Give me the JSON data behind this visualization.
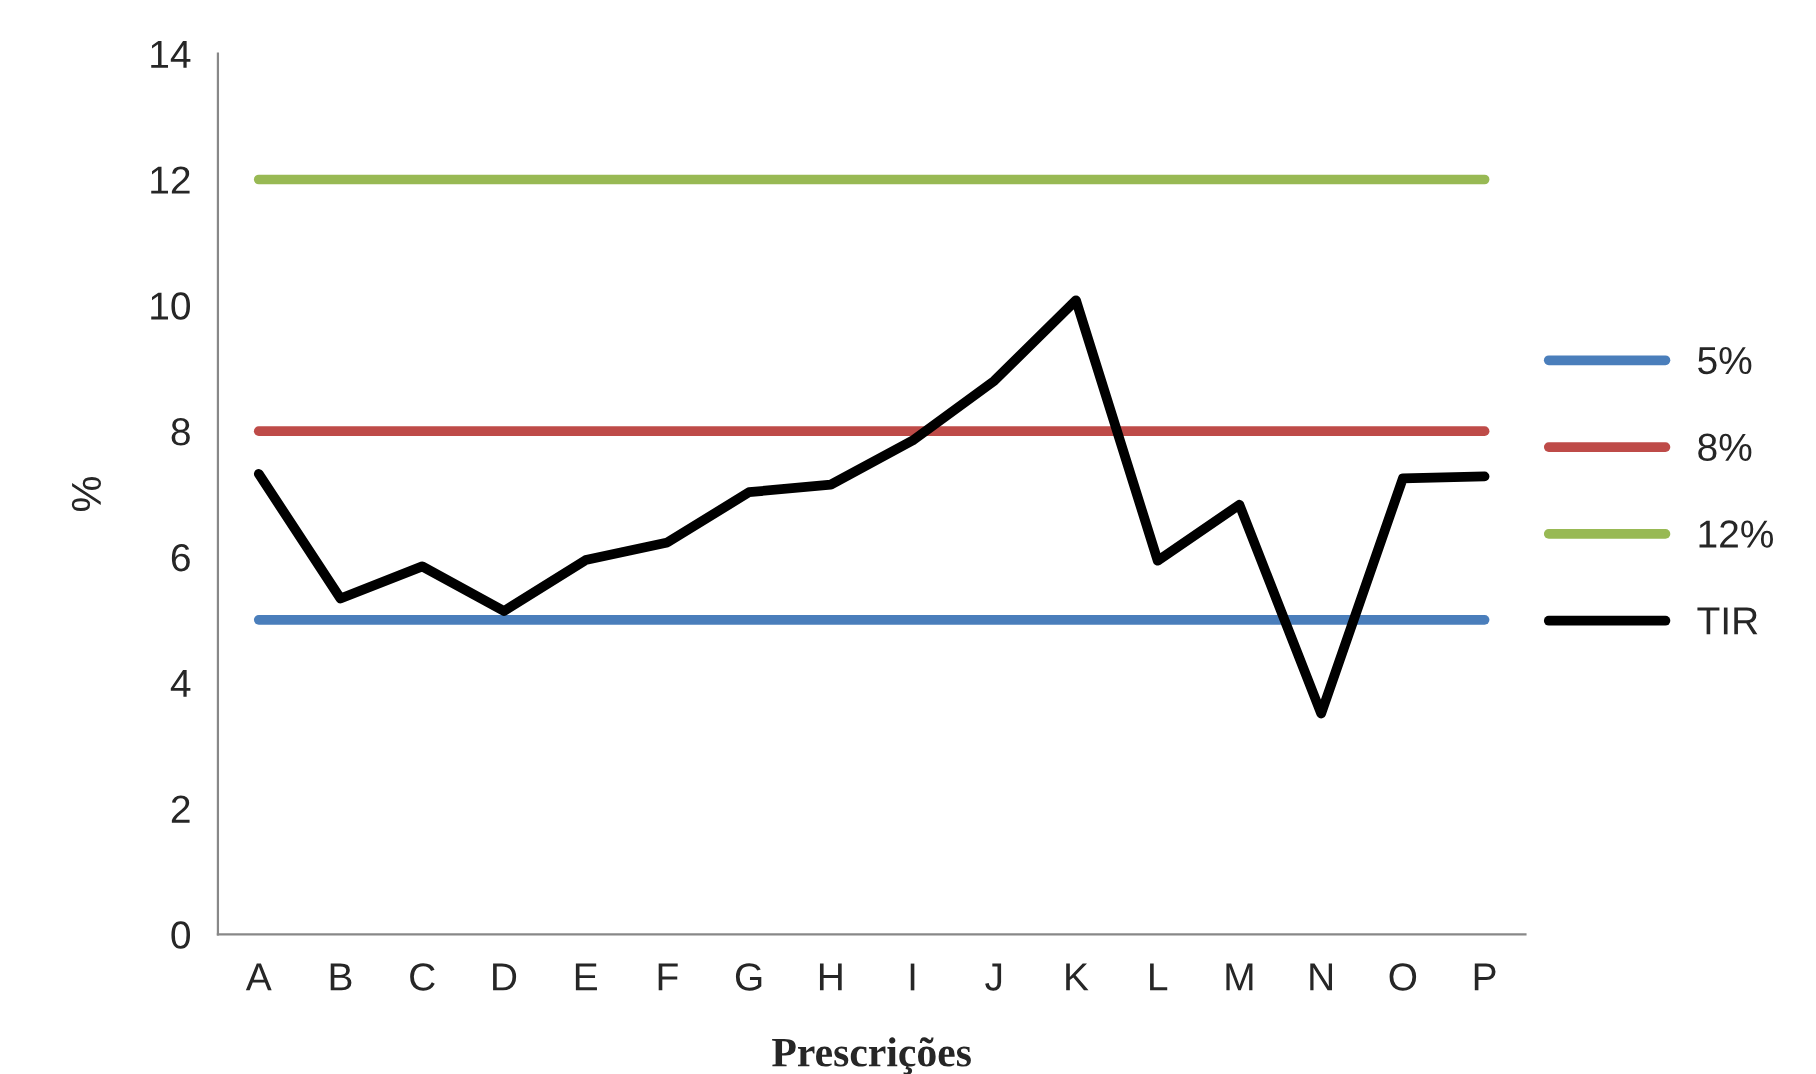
{
  "chart_data": {
    "type": "line",
    "xlabel": "Prescrições",
    "ylabel": "%",
    "categories": [
      "A",
      "B",
      "C",
      "D",
      "E",
      "F",
      "G",
      "H",
      "I",
      "J",
      "K",
      "L",
      "M",
      "N",
      "O",
      "P"
    ],
    "ylim": [
      0,
      14
    ],
    "yticks": [
      0,
      2,
      4,
      6,
      8,
      10,
      12,
      14
    ],
    "grid": false,
    "legend": "right",
    "marker": "none",
    "line_style": "solid",
    "series": [
      {
        "name": "5%",
        "color": "#4a7ebb",
        "values": [
          5,
          5,
          5,
          5,
          5,
          5,
          5,
          5,
          5,
          5,
          5,
          5,
          5,
          5,
          5,
          5
        ]
      },
      {
        "name": "8%",
        "color": "#be4b48",
        "values": [
          8,
          8,
          8,
          8,
          8,
          8,
          8,
          8,
          8,
          8,
          8,
          8,
          8,
          8,
          8,
          8
        ]
      },
      {
        "name": "12%",
        "color": "#98b954",
        "values": [
          12,
          12,
          12,
          12,
          12,
          12,
          12,
          12,
          12,
          12,
          12,
          12,
          12,
          12,
          12,
          12
        ]
      },
      {
        "name": "TIR",
        "color": "#000000",
        "values": [
          7.32,
          5.34,
          5.85,
          5.14,
          5.95,
          6.23,
          7.03,
          7.15,
          7.85,
          8.8,
          10.08,
          5.94,
          6.83,
          3.51,
          7.25,
          7.28
        ]
      }
    ]
  }
}
